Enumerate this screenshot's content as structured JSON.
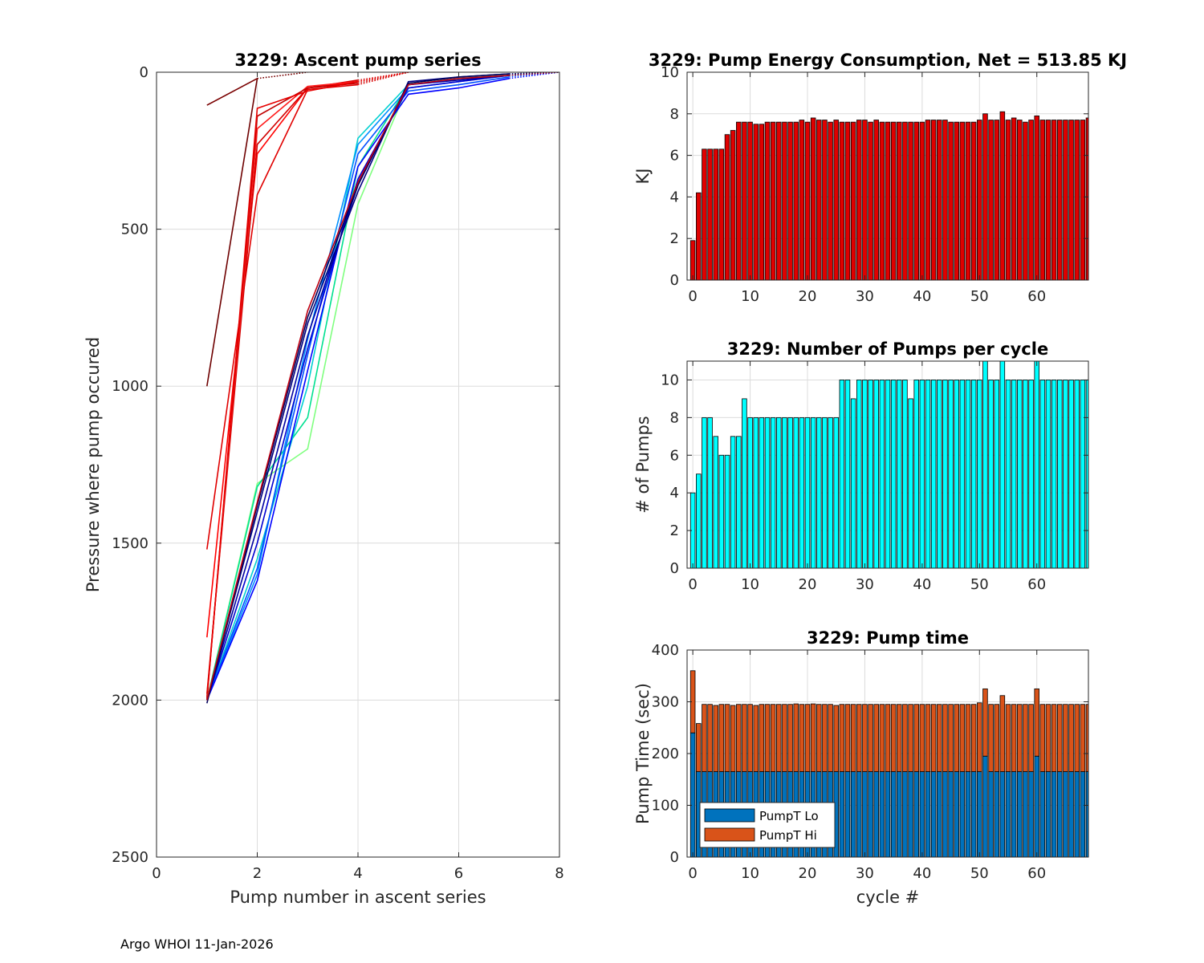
{
  "footer": "Argo WHOI 11-Jan-2026",
  "chart_data": [
    {
      "id": "ascent",
      "type": "line",
      "title": "3229: Ascent pump series",
      "xlabel": "Pump number in ascent series",
      "ylabel": "Pressure where pump occured",
      "xlim": [
        0,
        8
      ],
      "ylim": [
        0,
        2500
      ],
      "y_reversed": true,
      "grid": true,
      "xticks": [
        0,
        2,
        4,
        6,
        8
      ],
      "yticks": [
        0,
        500,
        1000,
        1500,
        2000,
        2500
      ],
      "series": [
        {
          "color": "#6e0000",
          "x": [
            1,
            2,
            3
          ],
          "y": [
            1000,
            20,
            0
          ],
          "dotted_from": 1
        },
        {
          "color": "#7a0000",
          "x": [
            1,
            2,
            3
          ],
          "y": [
            105,
            20,
            0
          ],
          "dotted_from": 1
        },
        {
          "color": "#e00000",
          "x": [
            1,
            2,
            3,
            4,
            5
          ],
          "y": [
            1520,
            390,
            55,
            40,
            0
          ],
          "dotted_from": 3
        },
        {
          "color": "#ff0000",
          "x": [
            1,
            2,
            3,
            4,
            5
          ],
          "y": [
            1800,
            260,
            50,
            30,
            0
          ],
          "dotted_from": 3
        },
        {
          "color": "#d00000",
          "x": [
            1,
            2,
            3,
            4,
            5
          ],
          "y": [
            1980,
            230,
            50,
            25,
            0
          ],
          "dotted_from": 3
        },
        {
          "color": "#ff1a1a",
          "x": [
            1,
            2,
            3,
            4,
            5
          ],
          "y": [
            1990,
            180,
            45,
            30,
            0
          ],
          "dotted_from": 3
        },
        {
          "color": "#c00000",
          "x": [
            1,
            2,
            3,
            4,
            5
          ],
          "y": [
            1995,
            140,
            50,
            35,
            0
          ],
          "dotted_from": 3
        },
        {
          "color": "#e60000",
          "x": [
            1,
            2,
            3,
            4,
            5
          ],
          "y": [
            2000,
            115,
            60,
            30,
            0
          ],
          "dotted_from": 3
        },
        {
          "color": "#80ff80",
          "x": [
            1,
            2,
            3,
            4,
            5,
            6,
            7,
            8
          ],
          "y": [
            2000,
            1310,
            1200,
            420,
            40,
            20,
            10,
            0
          ],
          "dotted_from": 6
        },
        {
          "color": "#00e090",
          "x": [
            1,
            2,
            3,
            4,
            5,
            6,
            7,
            8
          ],
          "y": [
            2000,
            1320,
            1100,
            300,
            40,
            20,
            10,
            0
          ],
          "dotted_from": 6
        },
        {
          "color": "#00d0d0",
          "x": [
            1,
            2,
            3,
            4,
            5,
            6,
            7,
            8
          ],
          "y": [
            2000,
            1550,
            1000,
            210,
            40,
            20,
            10,
            0
          ],
          "dotted_from": 6
        },
        {
          "color": "#0090ff",
          "x": [
            1,
            2,
            3,
            4,
            5,
            6,
            7,
            8
          ],
          "y": [
            2000,
            1600,
            850,
            230,
            50,
            30,
            10,
            0
          ],
          "dotted_from": 6
        },
        {
          "color": "#0050ff",
          "x": [
            1,
            2,
            3,
            4,
            5,
            6,
            7,
            8
          ],
          "y": [
            2000,
            1580,
            900,
            260,
            60,
            40,
            15,
            0
          ],
          "dotted_from": 6
        },
        {
          "color": "#0000ff",
          "x": [
            1,
            2,
            3,
            4,
            5,
            6,
            7,
            8
          ],
          "y": [
            2000,
            1620,
            950,
            300,
            70,
            50,
            20,
            0
          ],
          "dotted_from": 6
        },
        {
          "color": "#0000d0",
          "x": [
            1,
            2,
            3,
            4,
            5,
            6,
            7,
            8
          ],
          "y": [
            2000,
            1500,
            880,
            340,
            50,
            30,
            10,
            0
          ],
          "dotted_from": 6
        },
        {
          "color": "#0000a0",
          "x": [
            1,
            2,
            3,
            4,
            5,
            6,
            7,
            8
          ],
          "y": [
            2000,
            1450,
            840,
            360,
            40,
            25,
            10,
            0
          ],
          "dotted_from": 6
        },
        {
          "color": "#000080",
          "x": [
            1,
            2,
            3,
            4,
            5,
            6,
            7,
            8
          ],
          "y": [
            2000,
            1400,
            800,
            380,
            30,
            15,
            5,
            0
          ],
          "dotted_from": 6
        },
        {
          "color": "#00005a",
          "x": [
            1,
            2,
            3,
            4,
            5,
            6,
            7,
            8
          ],
          "y": [
            2010,
            1380,
            780,
            360,
            35,
            15,
            5,
            0
          ],
          "dotted_from": 6
        },
        {
          "color": "#c00010",
          "x": [
            1,
            2,
            3,
            4,
            5,
            6,
            7,
            8
          ],
          "y": [
            2000,
            1370,
            760,
            350,
            40,
            20,
            10,
            0
          ],
          "dotted_from": 6
        }
      ]
    },
    {
      "id": "energy",
      "type": "bar",
      "title": "3229: Pump Energy Consumption,  Net = 513.85 KJ",
      "xlabel": "",
      "ylabel": "KJ",
      "color": "#e00000",
      "xlim": [
        -1,
        69
      ],
      "ylim": [
        0,
        10
      ],
      "grid": true,
      "xticks": [
        0,
        10,
        20,
        30,
        40,
        50,
        60
      ],
      "yticks": [
        0,
        2,
        4,
        6,
        8,
        10
      ],
      "x_start": 0,
      "values": [
        1.9,
        4.2,
        6.3,
        6.3,
        6.3,
        6.3,
        7.0,
        7.2,
        7.6,
        7.6,
        7.6,
        7.5,
        7.5,
        7.6,
        7.6,
        7.6,
        7.6,
        7.6,
        7.6,
        7.7,
        7.6,
        7.8,
        7.7,
        7.7,
        7.6,
        7.7,
        7.6,
        7.6,
        7.6,
        7.7,
        7.7,
        7.6,
        7.7,
        7.6,
        7.6,
        7.6,
        7.6,
        7.6,
        7.6,
        7.6,
        7.6,
        7.7,
        7.7,
        7.7,
        7.7,
        7.6,
        7.6,
        7.6,
        7.6,
        7.6,
        7.7,
        8.0,
        7.7,
        7.7,
        8.1,
        7.7,
        7.8,
        7.7,
        7.6,
        7.7,
        7.9,
        7.7,
        7.7,
        7.7,
        7.7,
        7.7,
        7.7,
        7.7,
        7.7,
        7.8
      ]
    },
    {
      "id": "numpumps",
      "type": "bar",
      "title": "3229: Number of Pumps per cycle",
      "xlabel": "",
      "ylabel": "# of Pumps",
      "color": "#00ffff",
      "xlim": [
        -1,
        69
      ],
      "ylim": [
        0,
        11
      ],
      "grid": true,
      "xticks": [
        0,
        10,
        20,
        30,
        40,
        50,
        60
      ],
      "yticks": [
        0,
        2,
        4,
        6,
        8,
        10
      ],
      "x_start": 0,
      "values": [
        4,
        5,
        8,
        8,
        7,
        6,
        6,
        7,
        7,
        9,
        8,
        8,
        8,
        8,
        8,
        8,
        8,
        8,
        8,
        8,
        8,
        8,
        8,
        8,
        8,
        8,
        10,
        10,
        9,
        10,
        10,
        10,
        10,
        10,
        10,
        10,
        10,
        10,
        9,
        10,
        10,
        10,
        10,
        10,
        10,
        10,
        10,
        10,
        10,
        10,
        10,
        11,
        10,
        10,
        11,
        10,
        10,
        10,
        10,
        10,
        11,
        10,
        10,
        10,
        10,
        10,
        10,
        10,
        10,
        10
      ]
    },
    {
      "id": "pumptime",
      "type": "bar",
      "stacked": true,
      "title": "3229: Pump time",
      "xlabel": "cycle #",
      "ylabel": "Pump Time (sec)",
      "xlim": [
        -1,
        69
      ],
      "ylim": [
        0,
        400
      ],
      "grid": true,
      "xticks": [
        0,
        10,
        20,
        30,
        40,
        50,
        60
      ],
      "yticks": [
        0,
        100,
        200,
        300,
        400
      ],
      "x_start": 0,
      "legend": "bottom-left",
      "series": [
        {
          "name": "PumpT Lo",
          "color": "#0072bd",
          "values": [
            240,
            165,
            165,
            165,
            165,
            165,
            165,
            165,
            165,
            165,
            165,
            165,
            165,
            165,
            165,
            165,
            165,
            165,
            165,
            165,
            165,
            165,
            165,
            165,
            165,
            165,
            165,
            165,
            165,
            165,
            165,
            165,
            165,
            165,
            165,
            165,
            165,
            165,
            165,
            165,
            165,
            165,
            165,
            165,
            165,
            165,
            165,
            165,
            165,
            165,
            165,
            195,
            165,
            165,
            165,
            165,
            165,
            165,
            165,
            165,
            195,
            165,
            165,
            165,
            165,
            165,
            165,
            165,
            165,
            165
          ]
        },
        {
          "name": "PumpT Hi",
          "color": "#d95319",
          "values": [
            120,
            93,
            130,
            130,
            128,
            130,
            130,
            128,
            130,
            130,
            130,
            128,
            130,
            130,
            130,
            130,
            130,
            130,
            131,
            130,
            130,
            131,
            130,
            130,
            130,
            128,
            130,
            130,
            130,
            130,
            130,
            130,
            130,
            130,
            130,
            130,
            130,
            130,
            130,
            130,
            130,
            130,
            130,
            130,
            130,
            130,
            130,
            130,
            130,
            130,
            133,
            130,
            130,
            130,
            147,
            130,
            130,
            130,
            130,
            130,
            130,
            130,
            130,
            130,
            130,
            130,
            130,
            130,
            130,
            130
          ]
        }
      ]
    }
  ]
}
